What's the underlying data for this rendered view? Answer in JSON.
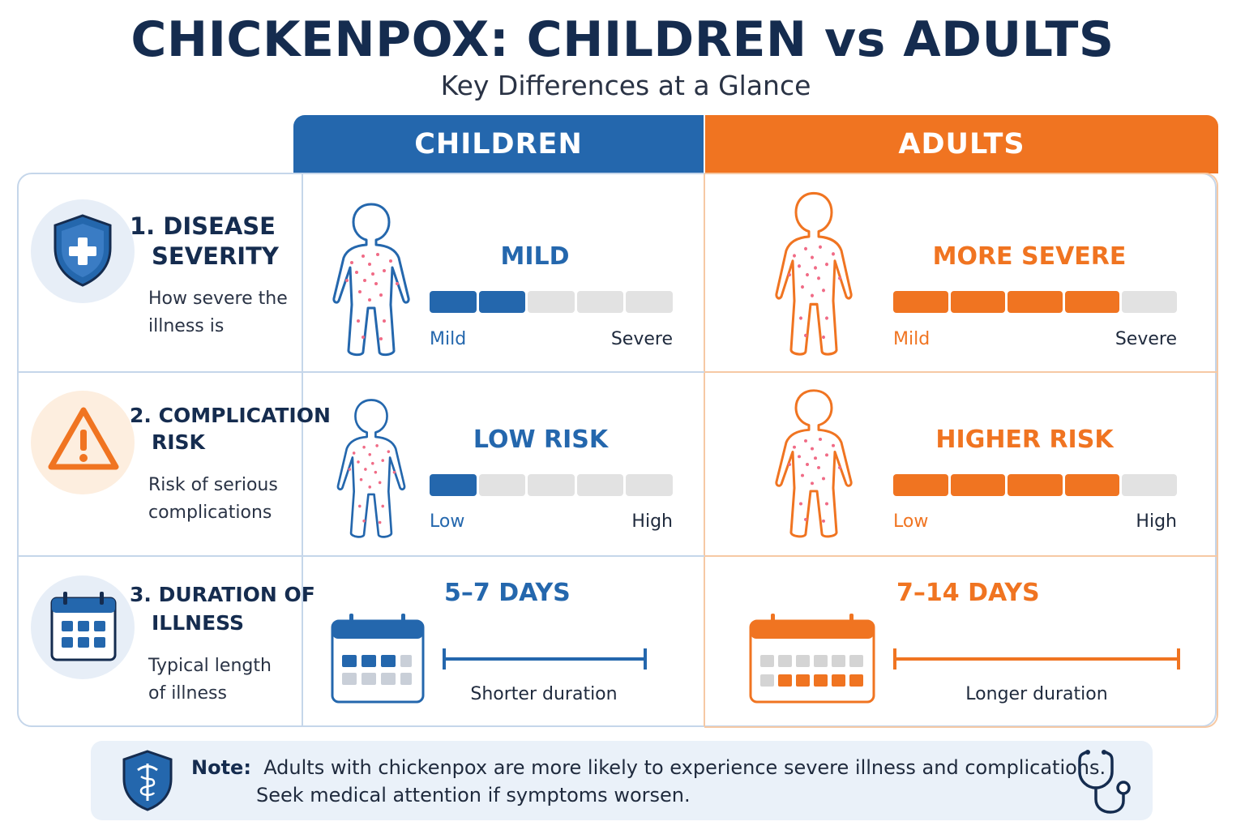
{
  "header": {
    "title": "CHICKENPOX: CHILDREN vs ADULTS",
    "subtitle": "Key Differences at a Glance"
  },
  "columns": {
    "children": "CHILDREN",
    "adults": "ADULTS"
  },
  "colors": {
    "children": "#2467ad",
    "adults": "#f07421",
    "navy": "#152c4f",
    "rash": "#f06b86"
  },
  "rows": [
    {
      "title_line1": "1. DISEASE",
      "title_line2": "SEVERITY",
      "desc_line1": "How severe the",
      "desc_line2": "illness is",
      "icon": "shield-plus-icon",
      "children": {
        "level": "MILD",
        "filled_segments": 2,
        "total_segments": 5,
        "low": "Mild",
        "high": "Severe"
      },
      "adults": {
        "level": "MORE SEVERE",
        "filled_segments": 4,
        "total_segments": 5,
        "low": "Mild",
        "high": "Severe"
      }
    },
    {
      "title_line1": "2. COMPLICATION",
      "title_line2": "RISK",
      "desc_line1": "Risk of serious",
      "desc_line2": "complications",
      "icon": "warning-icon",
      "children": {
        "level": "LOW RISK",
        "filled_segments": 1,
        "total_segments": 5,
        "low": "Low",
        "high": "High"
      },
      "adults": {
        "level": "HIGHER RISK",
        "filled_segments": 4,
        "total_segments": 5,
        "low": "Low",
        "high": "High"
      }
    },
    {
      "title_line1": "3. DURATION OF",
      "title_line2": "ILLNESS",
      "desc_line1": "Typical length",
      "desc_line2": "of illness",
      "icon": "calendar-icon",
      "children": {
        "days": "5–7 DAYS",
        "label": "Shorter duration"
      },
      "adults": {
        "days": "7–14 DAYS",
        "label": "Longer duration"
      }
    }
  ],
  "note": {
    "label": "Note:",
    "line1": "Adults with chickenpox are more likely to experience severe illness and complications.",
    "line2": "Seek medical attention if symptoms worsen."
  }
}
